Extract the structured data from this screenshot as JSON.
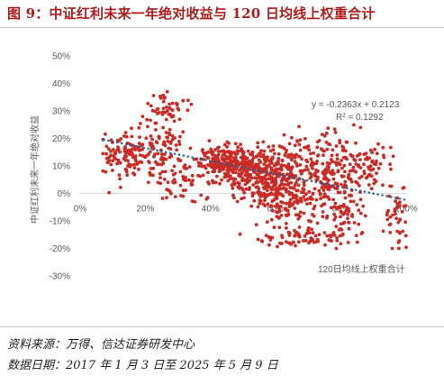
{
  "figure": {
    "title": "图 9：中证红利未来一年绝对收益与 120 日均线上权重合计",
    "source": "资料来源：万得、信达证券研发中心",
    "date_range": "数据日期：2017 年 1 月 3 日至 2025 年 5 月 9 日"
  },
  "colors": {
    "title": "#b11b1b",
    "points": "#cc2a25",
    "trendline": "#1f5f91",
    "axis": "#d9d9d9",
    "text": "#595959"
  },
  "chart_data": {
    "type": "scatter",
    "xlabel": "120日均线上权重合计",
    "ylabel": "中证红利未来一年绝对收益",
    "xlim": [
      0,
      1
    ],
    "ylim": [
      -0.3,
      0.5
    ],
    "x_ticks": [
      "0%",
      "20%",
      "40%",
      "60%",
      "80%",
      "100%"
    ],
    "y_ticks": [
      "50%",
      "40%",
      "30%",
      "20%",
      "10%",
      "0%",
      "-10%",
      "-20%",
      "-30%"
    ],
    "equation": "y = -0.2363x + 0.2123",
    "r2": "R² = 0.1292",
    "trendline": {
      "slope": -0.2363,
      "intercept": 0.2123,
      "x_range": [
        0.07,
        1.0
      ]
    },
    "clusters": [
      {
        "cx": 0.13,
        "cy": 0.13,
        "sx": 0.04,
        "sy": 0.045,
        "n": 110
      },
      {
        "cx": 0.24,
        "cy": 0.17,
        "sx": 0.04,
        "sy": 0.06,
        "n": 100
      },
      {
        "cx": 0.27,
        "cy": 0.31,
        "sx": 0.03,
        "sy": 0.03,
        "n": 40
      },
      {
        "cx": 0.31,
        "cy": 0.04,
        "sx": 0.05,
        "sy": 0.03,
        "n": 50
      },
      {
        "cx": 0.45,
        "cy": 0.12,
        "sx": 0.045,
        "sy": 0.03,
        "n": 220
      },
      {
        "cx": 0.55,
        "cy": 0.08,
        "sx": 0.06,
        "sy": 0.045,
        "n": 260
      },
      {
        "cx": 0.6,
        "cy": 0.005,
        "sx": 0.05,
        "sy": 0.025,
        "n": 90
      },
      {
        "cx": 0.64,
        "cy": -0.055,
        "sx": 0.05,
        "sy": 0.035,
        "n": 90
      },
      {
        "cx": 0.68,
        "cy": -0.16,
        "sx": 0.08,
        "sy": 0.018,
        "n": 80
      },
      {
        "cx": 0.7,
        "cy": 0.155,
        "sx": 0.06,
        "sy": 0.04,
        "n": 70
      },
      {
        "cx": 0.73,
        "cy": 0.06,
        "sx": 0.07,
        "sy": 0.04,
        "n": 120
      },
      {
        "cx": 0.81,
        "cy": -0.05,
        "sx": 0.035,
        "sy": 0.06,
        "n": 80
      },
      {
        "cx": 0.82,
        "cy": 0.12,
        "sx": 0.05,
        "sy": 0.06,
        "n": 60
      },
      {
        "cx": 0.9,
        "cy": 0.08,
        "sx": 0.04,
        "sy": 0.05,
        "n": 40
      },
      {
        "cx": 0.97,
        "cy": -0.1,
        "sx": 0.02,
        "sy": 0.05,
        "n": 40
      }
    ]
  }
}
